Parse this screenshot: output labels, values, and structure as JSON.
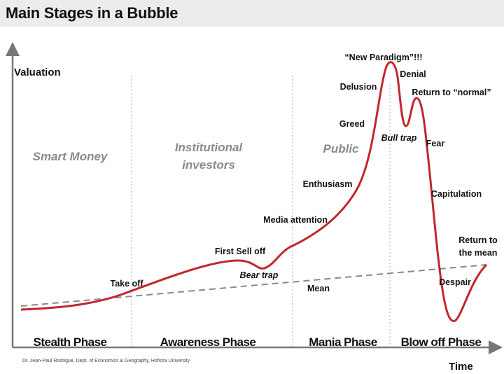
{
  "title": "Main Stages in a Bubble",
  "axes": {
    "y_label": "Valuation",
    "x_label": "Time"
  },
  "groups": {
    "smart_money": "Smart Money",
    "institutional_1": "Institutional",
    "institutional_2": "investors",
    "public": "Public"
  },
  "phases": [
    "Stealth Phase",
    "Awareness Phase",
    "Mania Phase",
    "Blow off Phase"
  ],
  "annotations": {
    "take_off": "Take off",
    "first_sell_off": "First Sell off",
    "bear_trap": "Bear trap",
    "mean": "Mean",
    "media_attention": "Media attention",
    "enthusiasm": "Enthusiasm",
    "greed": "Greed",
    "delusion": "Delusion",
    "new_paradigm": "“New Paradigm”!!!",
    "denial": "Denial",
    "bull_trap": "Bull trap",
    "return_normal": "Return to “normal”",
    "fear": "Fear",
    "capitulation": "Capitulation",
    "return_mean_1": "Return to",
    "return_mean_2": "the mean",
    "despair": "Despair"
  },
  "credit": "Dr. Jean-Paul Rodrigue, Dept. of Economics & Geography, Hofstra University",
  "colors": {
    "curve": "#c0282d",
    "mean_line": "#888888",
    "axis": "#777777",
    "group_text": "#8a8a8a"
  }
}
